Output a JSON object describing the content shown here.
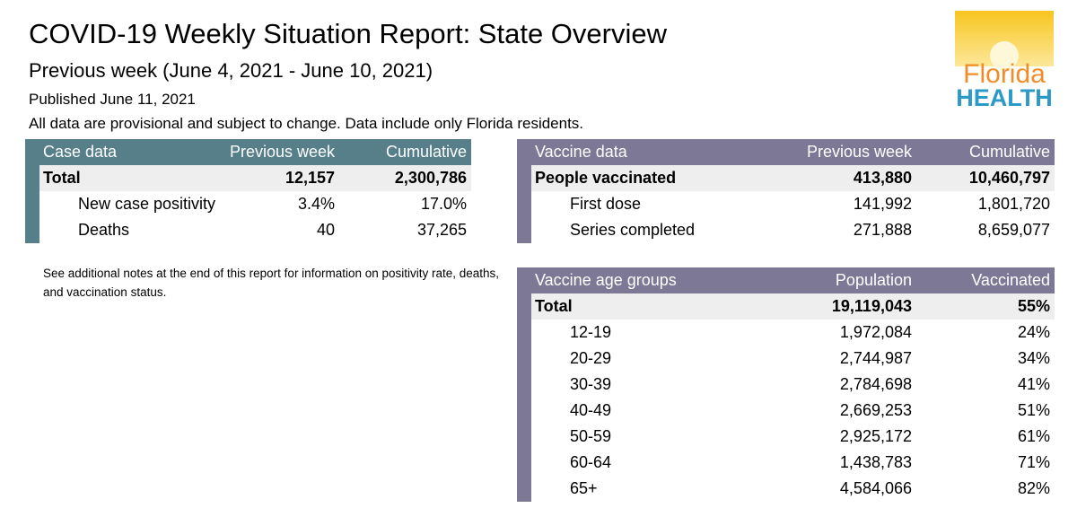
{
  "header": {
    "title": "COVID-19 Weekly Situation Report: State Overview",
    "subtitle": "Previous week (June 4, 2021 - June 10, 2021)",
    "published": "Published June 11, 2021",
    "disclaimer": "All data are provisional and subject to change. Data include only Florida residents."
  },
  "logo": {
    "line1": "Florida",
    "line2": "HEALTH"
  },
  "case_table": {
    "columns": [
      "Case data",
      "Previous week",
      "Cumulative"
    ],
    "rows": [
      [
        "Total",
        "12,157",
        "2,300,786"
      ],
      [
        "New case positivity",
        "3.4%",
        "17.0%"
      ],
      [
        "Deaths",
        "40",
        "37,265"
      ]
    ]
  },
  "vaccine_table": {
    "columns": [
      "Vaccine data",
      "Previous week",
      "Cumulative"
    ],
    "rows": [
      [
        "People vaccinated",
        "413,880",
        "10,460,797"
      ],
      [
        "First dose",
        "141,992",
        "1,801,720"
      ],
      [
        "Series completed",
        "271,888",
        "8,659,077"
      ]
    ]
  },
  "note": "See additional notes at the end of this report for information on positivity rate, deaths, and vaccination status.",
  "age_table": {
    "columns": [
      "Vaccine age groups",
      "Population",
      "Vaccinated"
    ],
    "rows": [
      [
        "Total",
        "19,119,043",
        "55%"
      ],
      [
        "12-19",
        "1,972,084",
        "24%"
      ],
      [
        "20-29",
        "2,744,987",
        "34%"
      ],
      [
        "30-39",
        "2,784,698",
        "41%"
      ],
      [
        "40-49",
        "2,669,253",
        "51%"
      ],
      [
        "50-59",
        "2,925,172",
        "61%"
      ],
      [
        "60-64",
        "1,438,783",
        "71%"
      ],
      [
        "65+",
        "4,584,066",
        "82%"
      ]
    ]
  }
}
